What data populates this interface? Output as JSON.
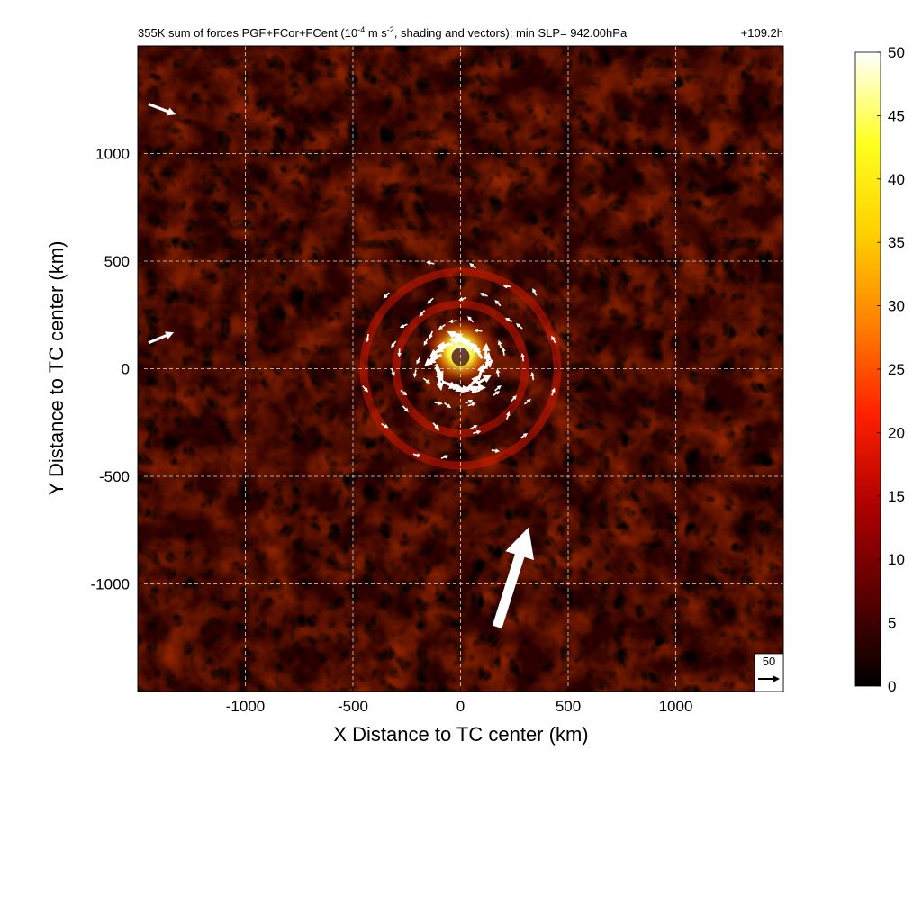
{
  "chart_data": {
    "type": "heatmap",
    "title_parts": {
      "before_exp": "355K sum of forces PGF+FCor+FCent (10",
      "exp1": "-4",
      "middle": " m s",
      "exp2": "-2",
      "after_exp": ", shading and vectors); min SLP= 942.00hPa",
      "time": "+109.2h"
    },
    "xlabel": "X Distance to TC center (km)",
    "ylabel": "Y Distance to TC center (km)",
    "xlim": [
      -1500,
      1500
    ],
    "ylim": [
      -1500,
      1500
    ],
    "xticks": [
      -1000,
      -500,
      0,
      500,
      1000
    ],
    "yticks": [
      -1000,
      -500,
      0,
      500,
      1000
    ],
    "xtick_labels": [
      "-1000",
      "-500",
      "0",
      "500",
      "1000"
    ],
    "ytick_labels": [
      "-1000",
      "-500",
      "0",
      "500",
      "1000"
    ],
    "grid": true,
    "colorbar": {
      "min": 0,
      "max": 50,
      "ticks": [
        0,
        5,
        10,
        15,
        20,
        25,
        30,
        35,
        40,
        45,
        50
      ],
      "tick_labels": [
        "0",
        "5",
        "10",
        "15",
        "20",
        "25",
        "30",
        "35",
        "40",
        "45",
        "50"
      ],
      "colormap": [
        "#000000",
        "#5a0000",
        "#b00000",
        "#ff2000",
        "#ff8000",
        "#ffd000",
        "#ffff20",
        "#ffffff"
      ]
    },
    "reference_vector": {
      "label": "50",
      "magnitude": 50
    },
    "features": [
      {
        "name": "inner core maximum",
        "center": [
          0,
          80
        ],
        "radius_km": 120,
        "peak": 50
      },
      {
        "name": "secondary ring",
        "center": [
          0,
          0
        ],
        "radius_km": 300,
        "peak": 15
      },
      {
        "name": "outer ring",
        "center": [
          0,
          0
        ],
        "radius_km": 450,
        "peak": 10
      }
    ],
    "vectors": [
      {
        "x": 170,
        "y": -1200,
        "u": 30,
        "v": 95
      },
      {
        "x": -1450,
        "y": 1230,
        "u": 26,
        "v": -10
      },
      {
        "x": -1450,
        "y": 120,
        "u": 24,
        "v": 10
      }
    ]
  }
}
